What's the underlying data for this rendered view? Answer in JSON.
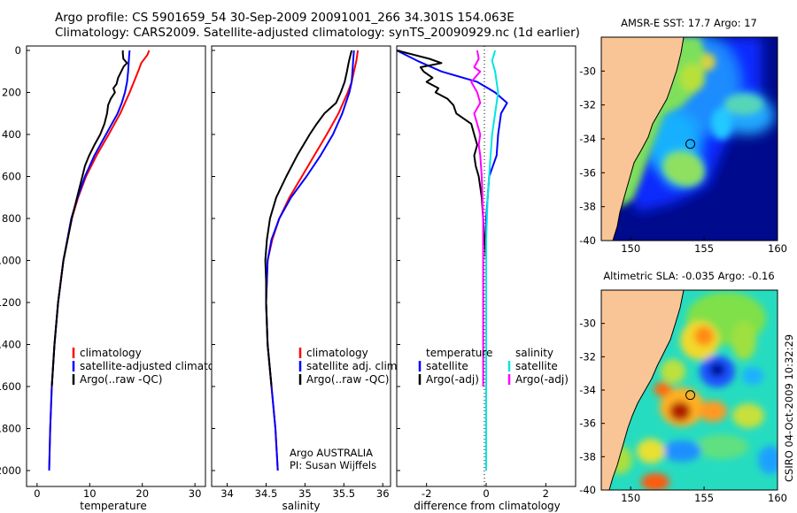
{
  "header": {
    "line1": "Argo profile: CS 5901659_54 30-Sep-2009 20091001_266 34.301S 154.063E",
    "line2": "Climatology: CARS2009. Satellite-adjusted climatology: synTS_20090929.nc (1d earlier)"
  },
  "footer_stamp": "CSIRO 04-Oct-2009 10:32:29",
  "colors": {
    "clim": "#ff0000",
    "sat": "#0000ff",
    "argo": "#000000",
    "sal_sat": "#00e5e5",
    "sal_argo": "#ff00ff"
  },
  "chart_data": [
    {
      "type": "line",
      "panel": "temperature",
      "xlabel": "temperature",
      "xlim": [
        -2,
        32
      ],
      "ylim": [
        0,
        2050
      ],
      "y_inverted": true,
      "x_ticks": [
        "0",
        "10",
        "20",
        "30"
      ],
      "y_ticks": [
        "0",
        "200",
        "400",
        "600",
        "800",
        "1000",
        "1200",
        "1400",
        "1600",
        "1800",
        "2000"
      ],
      "legend": [
        "climatology",
        "satellite-adjusted climatology",
        "Argo(..raw -QC)"
      ],
      "series": [
        {
          "name": "climatology",
          "color": "#ff0000",
          "depth": [
            0,
            20,
            60,
            100,
            150,
            200,
            250,
            300,
            400,
            500,
            600,
            700,
            800,
            1000,
            1200,
            1400,
            1600,
            1800,
            2000
          ],
          "values": [
            21.3,
            21.0,
            19.8,
            19.2,
            18.4,
            17.6,
            16.7,
            15.8,
            13.6,
            11.3,
            9.3,
            7.8,
            6.6,
            5.0,
            4.0,
            3.3,
            2.8,
            2.5,
            2.3
          ]
        },
        {
          "name": "satellite-adjusted climatology",
          "color": "#0000ff",
          "depth": [
            0,
            20,
            60,
            100,
            150,
            200,
            250,
            300,
            400,
            500,
            600,
            700,
            800,
            1000,
            1200,
            1400,
            1600,
            1800,
            2000
          ],
          "values": [
            17.6,
            17.5,
            17.4,
            17.3,
            17.1,
            16.7,
            16.1,
            15.3,
            13.1,
            10.9,
            9.1,
            7.7,
            6.5,
            5.0,
            4.0,
            3.3,
            2.8,
            2.5,
            2.3
          ]
        },
        {
          "name": "Argo(..raw -QC)",
          "color": "#000000",
          "depth": [
            0,
            15,
            40,
            60,
            75,
            100,
            130,
            160,
            180,
            200,
            230,
            260,
            300,
            350,
            400,
            450,
            500,
            550,
            600,
            700,
            800,
            1000,
            1200,
            1400,
            1600
          ],
          "values": [
            16.3,
            16.3,
            16.4,
            17.1,
            16.5,
            16.0,
            15.4,
            15.1,
            14.5,
            14.8,
            14.0,
            13.5,
            13.3,
            12.8,
            12.0,
            10.9,
            9.9,
            9.1,
            8.6,
            7.6,
            6.6,
            5.0,
            4.0,
            3.3,
            2.8
          ]
        }
      ]
    },
    {
      "type": "line",
      "panel": "salinity",
      "xlabel": "salinity",
      "xlim": [
        33.8,
        36.1
      ],
      "ylim": [
        0,
        2050
      ],
      "y_inverted": true,
      "x_ticks": [
        "34",
        "34.5",
        "35",
        "35.5",
        "36"
      ],
      "legend": [
        "climatology",
        "satellite adj. clim.",
        "Argo(..raw -QC)"
      ],
      "annotation": [
        "Argo AUSTRALIA",
        "PI: Susan Wijffels"
      ],
      "series": [
        {
          "name": "climatology",
          "color": "#ff0000",
          "depth": [
            0,
            50,
            100,
            150,
            200,
            300,
            400,
            500,
            600,
            700,
            800,
            900,
            1000,
            1200,
            1400,
            1600,
            1800,
            2000
          ],
          "values": [
            35.68,
            35.66,
            35.63,
            35.6,
            35.55,
            35.43,
            35.28,
            35.12,
            34.96,
            34.8,
            34.67,
            34.58,
            34.52,
            34.5,
            34.52,
            34.57,
            34.62,
            34.65
          ]
        },
        {
          "name": "satellite adj. clim.",
          "color": "#0000ff",
          "depth": [
            0,
            50,
            100,
            150,
            200,
            300,
            400,
            500,
            600,
            700,
            800,
            900,
            1000,
            1200,
            1400,
            1600,
            1800,
            2000
          ],
          "values": [
            35.63,
            35.62,
            35.61,
            35.6,
            35.57,
            35.48,
            35.36,
            35.2,
            35.02,
            34.82,
            34.67,
            34.57,
            34.52,
            34.5,
            34.52,
            34.57,
            34.62,
            34.65
          ]
        },
        {
          "name": "Argo(..raw -QC)",
          "color": "#000000",
          "depth": [
            0,
            30,
            60,
            100,
            150,
            200,
            250,
            300,
            350,
            400,
            500,
            600,
            700,
            800,
            900,
            1000,
            1100,
            1200,
            1400,
            1600
          ],
          "values": [
            35.6,
            35.58,
            35.56,
            35.54,
            35.51,
            35.46,
            35.4,
            35.25,
            35.15,
            35.06,
            34.9,
            34.76,
            34.63,
            34.55,
            34.51,
            34.49,
            34.5,
            34.5,
            34.52,
            34.57
          ]
        }
      ]
    },
    {
      "type": "line",
      "panel": "difference",
      "xlabel": "difference from climatology",
      "xlim": [
        -3,
        3
      ],
      "ylim": [
        0,
        2050
      ],
      "y_inverted": true,
      "x_ticks": [
        "-2",
        "0",
        "2"
      ],
      "legend_temperature": [
        "temperature",
        "satellite",
        "Argo(-adj)"
      ],
      "legend_salinity": [
        "salinity",
        "satellite",
        "Argo(-adj)"
      ],
      "series": [
        {
          "name": "temperature satellite",
          "color": "#0000ff",
          "depth": [
            0,
            50,
            100,
            150,
            200,
            250,
            300,
            400,
            500,
            600,
            800,
            1000,
            1200,
            1500,
            2000
          ],
          "values": [
            -3.0,
            -2.3,
            -1.5,
            -0.3,
            0.3,
            0.7,
            0.5,
            0.4,
            0.35,
            0.1,
            0.0,
            0.0,
            0.0,
            0.0,
            0.0
          ]
        },
        {
          "name": "temperature Argo(-adj)",
          "color": "#000000",
          "depth": [
            0,
            40,
            60,
            80,
            100,
            130,
            150,
            180,
            200,
            230,
            260,
            300,
            350,
            400,
            450,
            500,
            550,
            600,
            700,
            800,
            900,
            1000
          ],
          "values": [
            -3.0,
            -1.9,
            -1.5,
            -2.2,
            -2.1,
            -1.8,
            -2.0,
            -1.6,
            -1.7,
            -1.3,
            -1.1,
            -1.0,
            -0.5,
            -0.4,
            -0.3,
            -0.4,
            -0.35,
            -0.25,
            -0.15,
            -0.1,
            -0.05,
            0.0
          ]
        },
        {
          "name": "salinity satellite",
          "color": "#00e5e5",
          "depth": [
            0,
            50,
            100,
            200,
            300,
            400,
            500,
            700,
            900,
            1200,
            1600,
            2000
          ],
          "values": [
            0.3,
            0.2,
            0.3,
            0.4,
            0.3,
            0.2,
            0.15,
            0.05,
            0.0,
            0.0,
            0.0,
            0.0
          ]
        },
        {
          "name": "salinity Argo(-adj)",
          "color": "#ff00ff",
          "depth": [
            0,
            40,
            80,
            100,
            150,
            200,
            250,
            300,
            350,
            400,
            450,
            500,
            600,
            800,
            1000,
            1200,
            1600
          ],
          "values": [
            -0.3,
            -0.25,
            -0.4,
            -0.2,
            -0.5,
            -0.3,
            -0.2,
            -0.4,
            -0.3,
            -0.2,
            -0.25,
            -0.2,
            -0.15,
            -0.1,
            -0.1,
            -0.1,
            -0.1
          ]
        }
      ]
    },
    {
      "type": "heatmap",
      "panel": "sst_map",
      "title": "AMSR-E SST: 17.7 Argo: 17",
      "xlim": [
        148,
        160
      ],
      "ylim": [
        -40,
        -28
      ],
      "x_ticks": [
        "150",
        "155",
        "160"
      ],
      "y_ticks": [
        "-30",
        "-32",
        "-34",
        "-36",
        "-38",
        "-40"
      ],
      "marker": {
        "lon": 154.063,
        "lat": -34.301
      }
    },
    {
      "type": "heatmap",
      "panel": "sla_map",
      "title": "Altimetric SLA: -0.035 Argo: -0.16",
      "xlim": [
        148,
        160
      ],
      "ylim": [
        -40,
        -28
      ],
      "x_ticks": [
        "150",
        "155",
        "160"
      ],
      "y_ticks": [
        "-30",
        "-32",
        "-34",
        "-36",
        "-38",
        "-40"
      ],
      "marker": {
        "lon": 154.063,
        "lat": -34.301
      }
    }
  ]
}
